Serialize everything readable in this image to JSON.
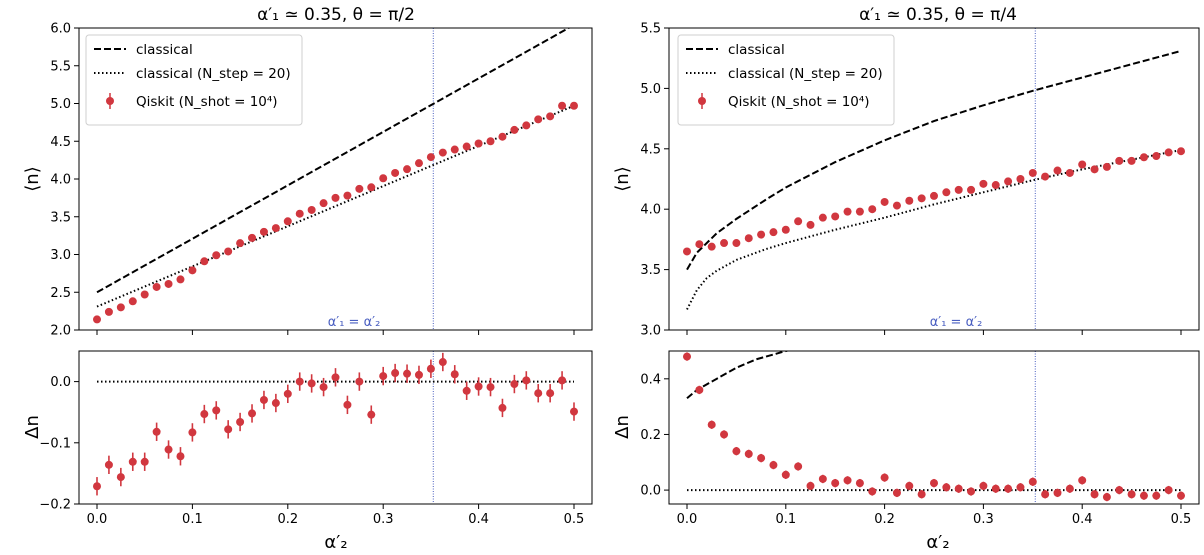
{
  "panels": [
    {
      "title": "α′₁ ≃ 0.35, θ = π/2",
      "legend": {
        "classical": "classical",
        "classical_nstep": "classical (N_step = 20)",
        "qiskit": "Qiskit (N_shot = 10⁴)"
      },
      "vline_label": "α′₁ = α′₂",
      "top_ylabel": "⟨n⟩",
      "bottom_ylabel": "Δn",
      "xlabel": "α′₂"
    },
    {
      "title": "α′₁ ≃ 0.35, θ = π/4",
      "legend": {
        "classical": "classical",
        "classical_nstep": "classical (N_step = 20)",
        "qiskit": "Qiskit (N_shot = 10⁴)"
      },
      "vline_label": "α′₁ = α′₂",
      "top_ylabel": "⟨n⟩",
      "bottom_ylabel": "Δn",
      "xlabel": "α′₂"
    }
  ],
  "chart_data": [
    {
      "type": "line",
      "panel": "left-top",
      "title": "α′₁ ≃ 0.35, θ = π/2",
      "xlabel": "",
      "ylabel": "⟨n⟩",
      "xlim": [
        0,
        0.5
      ],
      "ylim": [
        2.0,
        6.0
      ],
      "xticks": [
        0.0,
        0.1,
        0.2,
        0.3,
        0.4,
        0.5
      ],
      "yticks": [
        2.0,
        2.5,
        3.0,
        3.5,
        4.0,
        4.5,
        5.0,
        5.5,
        6.0
      ],
      "ytick_labels": [
        "2.0",
        "2.5",
        "3.0",
        "3.5",
        "4.0",
        "4.5",
        "5.0",
        "5.5",
        "6.0"
      ],
      "vline_x": 0.3525,
      "legend_position": "top-left",
      "series": [
        {
          "name": "classical",
          "style": "dashed",
          "x": [
            0.0,
            0.5
          ],
          "y": [
            2.5,
            6.04
          ]
        },
        {
          "name": "classical (N_step = 20)",
          "style": "dotted",
          "x": [
            0.0,
            0.5
          ],
          "y": [
            2.31,
            4.97
          ]
        },
        {
          "name": "Qiskit (N_shot = 10⁴)",
          "style": "points",
          "color": "#d1373f",
          "x": [
            0.0,
            0.0125,
            0.025,
            0.0375,
            0.05,
            0.0625,
            0.075,
            0.0875,
            0.1,
            0.1125,
            0.125,
            0.1375,
            0.15,
            0.1625,
            0.175,
            0.1875,
            0.2,
            0.2125,
            0.225,
            0.2375,
            0.25,
            0.2625,
            0.275,
            0.2875,
            0.3,
            0.3125,
            0.325,
            0.3375,
            0.35,
            0.3625,
            0.375,
            0.3875,
            0.4,
            0.4125,
            0.425,
            0.4375,
            0.45,
            0.4625,
            0.475,
            0.4875,
            0.5
          ],
          "y": [
            2.14,
            2.24,
            2.3,
            2.38,
            2.47,
            2.57,
            2.61,
            2.67,
            2.79,
            2.91,
            2.99,
            3.04,
            3.15,
            3.22,
            3.3,
            3.35,
            3.44,
            3.54,
            3.59,
            3.68,
            3.75,
            3.78,
            3.87,
            3.89,
            4.01,
            4.08,
            4.13,
            4.21,
            4.29,
            4.35,
            4.39,
            4.43,
            4.47,
            4.5,
            4.56,
            4.65,
            4.71,
            4.79,
            4.83,
            4.97,
            4.97
          ]
        }
      ]
    },
    {
      "type": "line",
      "panel": "left-bottom",
      "xlabel": "α′₂",
      "ylabel": "Δn",
      "xlim": [
        0,
        0.5
      ],
      "ylim": [
        -0.2,
        0.05
      ],
      "xticks": [
        0.0,
        0.1,
        0.2,
        0.3,
        0.4,
        0.5
      ],
      "yticks": [
        -0.2,
        -0.1,
        0.0
      ],
      "ytick_labels": [
        "−0.2",
        "−0.1",
        "0.0"
      ],
      "vline_x": 0.3525,
      "series": [
        {
          "name": "classical (N_step = 20)",
          "style": "dotted",
          "x": [
            0.0,
            0.5
          ],
          "y": [
            0.0,
            0.0
          ]
        },
        {
          "name": "Qiskit (N_shot = 10⁴)",
          "style": "points",
          "color": "#d1373f",
          "yerr": 0.015,
          "x": [
            0.0,
            0.0125,
            0.025,
            0.0375,
            0.05,
            0.0625,
            0.075,
            0.0875,
            0.1,
            0.1125,
            0.125,
            0.1375,
            0.15,
            0.1625,
            0.175,
            0.1875,
            0.2,
            0.2125,
            0.225,
            0.2375,
            0.25,
            0.2625,
            0.275,
            0.2875,
            0.3,
            0.3125,
            0.325,
            0.3375,
            0.35,
            0.3625,
            0.375,
            0.3875,
            0.4,
            0.4125,
            0.425,
            0.4375,
            0.45,
            0.4625,
            0.475,
            0.4875,
            0.5
          ],
          "y": [
            -0.171,
            -0.136,
            -0.156,
            -0.131,
            -0.131,
            -0.082,
            -0.111,
            -0.122,
            -0.083,
            -0.053,
            -0.047,
            -0.078,
            -0.066,
            -0.052,
            -0.03,
            -0.035,
            -0.02,
            0.0,
            -0.003,
            -0.009,
            0.007,
            -0.038,
            0.0,
            -0.054,
            0.009,
            0.014,
            0.013,
            0.011,
            0.021,
            0.032,
            0.012,
            -0.015,
            -0.008,
            -0.009,
            -0.043,
            -0.004,
            0.002,
            -0.019,
            -0.019,
            0.002,
            -0.049
          ]
        }
      ]
    },
    {
      "type": "line",
      "panel": "right-top",
      "title": "α′₁ ≃ 0.35, θ = π/4",
      "xlabel": "",
      "ylabel": "⟨n⟩",
      "xlim": [
        0,
        0.5
      ],
      "ylim": [
        3.0,
        5.5
      ],
      "xticks": [
        0.0,
        0.1,
        0.2,
        0.3,
        0.4,
        0.5
      ],
      "yticks": [
        3.0,
        3.5,
        4.0,
        4.5,
        5.0,
        5.5
      ],
      "ytick_labels": [
        "3.0",
        "3.5",
        "4.0",
        "4.5",
        "5.0",
        "5.5"
      ],
      "vline_x": 0.3525,
      "legend_position": "top-left",
      "series": [
        {
          "name": "classical",
          "style": "dashed",
          "x": [
            0.0,
            0.01,
            0.02,
            0.03,
            0.05,
            0.08,
            0.1,
            0.15,
            0.2,
            0.25,
            0.3,
            0.35,
            0.4,
            0.45,
            0.5
          ],
          "y": [
            3.5,
            3.64,
            3.72,
            3.8,
            3.92,
            4.08,
            4.18,
            4.39,
            4.57,
            4.73,
            4.86,
            4.98,
            5.09,
            5.2,
            5.31
          ]
        },
        {
          "name": "classical (N_step = 20)",
          "style": "dotted",
          "x": [
            0.0,
            0.01,
            0.02,
            0.03,
            0.05,
            0.08,
            0.1,
            0.15,
            0.2,
            0.25,
            0.3,
            0.35,
            0.4,
            0.45,
            0.5
          ],
          "y": [
            3.17,
            3.33,
            3.43,
            3.49,
            3.58,
            3.67,
            3.72,
            3.83,
            3.93,
            4.04,
            4.14,
            4.24,
            4.33,
            4.41,
            4.49
          ]
        },
        {
          "name": "Qiskit (N_shot = 10⁴)",
          "style": "points",
          "color": "#d1373f",
          "x": [
            0.0,
            0.0125,
            0.025,
            0.0375,
            0.05,
            0.0625,
            0.075,
            0.0875,
            0.1,
            0.1125,
            0.125,
            0.1375,
            0.15,
            0.1625,
            0.175,
            0.1875,
            0.2,
            0.2125,
            0.225,
            0.2375,
            0.25,
            0.2625,
            0.275,
            0.2875,
            0.3,
            0.3125,
            0.325,
            0.3375,
            0.35,
            0.3625,
            0.375,
            0.3875,
            0.4,
            0.4125,
            0.425,
            0.4375,
            0.45,
            0.4625,
            0.475,
            0.4875,
            0.5
          ],
          "y": [
            3.65,
            3.71,
            3.69,
            3.72,
            3.72,
            3.76,
            3.79,
            3.81,
            3.83,
            3.9,
            3.87,
            3.93,
            3.94,
            3.98,
            3.98,
            4.0,
            4.06,
            4.03,
            4.07,
            4.09,
            4.11,
            4.14,
            4.16,
            4.16,
            4.21,
            4.2,
            4.23,
            4.25,
            4.3,
            4.27,
            4.32,
            4.3,
            4.37,
            4.33,
            4.35,
            4.4,
            4.4,
            4.43,
            4.44,
            4.47,
            4.48
          ]
        }
      ]
    },
    {
      "type": "line",
      "panel": "right-bottom",
      "xlabel": "α′₂",
      "ylabel": "Δn",
      "xlim": [
        0,
        0.5
      ],
      "ylim": [
        -0.05,
        0.5
      ],
      "xticks": [
        0.0,
        0.1,
        0.2,
        0.3,
        0.4,
        0.5
      ],
      "yticks": [
        0.0,
        0.2,
        0.4
      ],
      "ytick_labels": [
        "0.0",
        "0.2",
        "0.4"
      ],
      "vline_x": 0.3525,
      "series": [
        {
          "name": "classical",
          "style": "dashed",
          "x": [
            0.0,
            0.01,
            0.02,
            0.03,
            0.04,
            0.05,
            0.06,
            0.07,
            0.08,
            0.09,
            0.1,
            0.11
          ],
          "y": [
            0.33,
            0.36,
            0.38,
            0.4,
            0.42,
            0.44,
            0.455,
            0.47,
            0.48,
            0.49,
            0.5,
            0.51
          ]
        },
        {
          "name": "classical (N_step = 20)",
          "style": "dotted",
          "x": [
            0.0,
            0.5
          ],
          "y": [
            0.0,
            0.0
          ]
        },
        {
          "name": "Qiskit (N_shot = 10⁴)",
          "style": "points",
          "color": "#d1373f",
          "yerr": 0.015,
          "x": [
            0.0,
            0.0125,
            0.025,
            0.0375,
            0.05,
            0.0625,
            0.075,
            0.0875,
            0.1,
            0.1125,
            0.125,
            0.1375,
            0.15,
            0.1625,
            0.175,
            0.1875,
            0.2,
            0.2125,
            0.225,
            0.2375,
            0.25,
            0.2625,
            0.275,
            0.2875,
            0.3,
            0.3125,
            0.325,
            0.3375,
            0.35,
            0.3625,
            0.375,
            0.3875,
            0.4,
            0.4125,
            0.425,
            0.4375,
            0.45,
            0.4625,
            0.475,
            0.4875,
            0.5
          ],
          "y": [
            0.48,
            0.36,
            0.235,
            0.2,
            0.14,
            0.13,
            0.115,
            0.09,
            0.055,
            0.085,
            0.015,
            0.04,
            0.025,
            0.035,
            0.025,
            -0.005,
            0.045,
            -0.01,
            0.015,
            -0.015,
            0.025,
            0.01,
            0.005,
            -0.005,
            0.015,
            0.005,
            0.005,
            0.01,
            0.03,
            -0.015,
            -0.01,
            0.005,
            0.035,
            -0.015,
            -0.025,
            0.0,
            -0.015,
            -0.02,
            -0.02,
            0.0,
            -0.02
          ]
        }
      ]
    }
  ]
}
